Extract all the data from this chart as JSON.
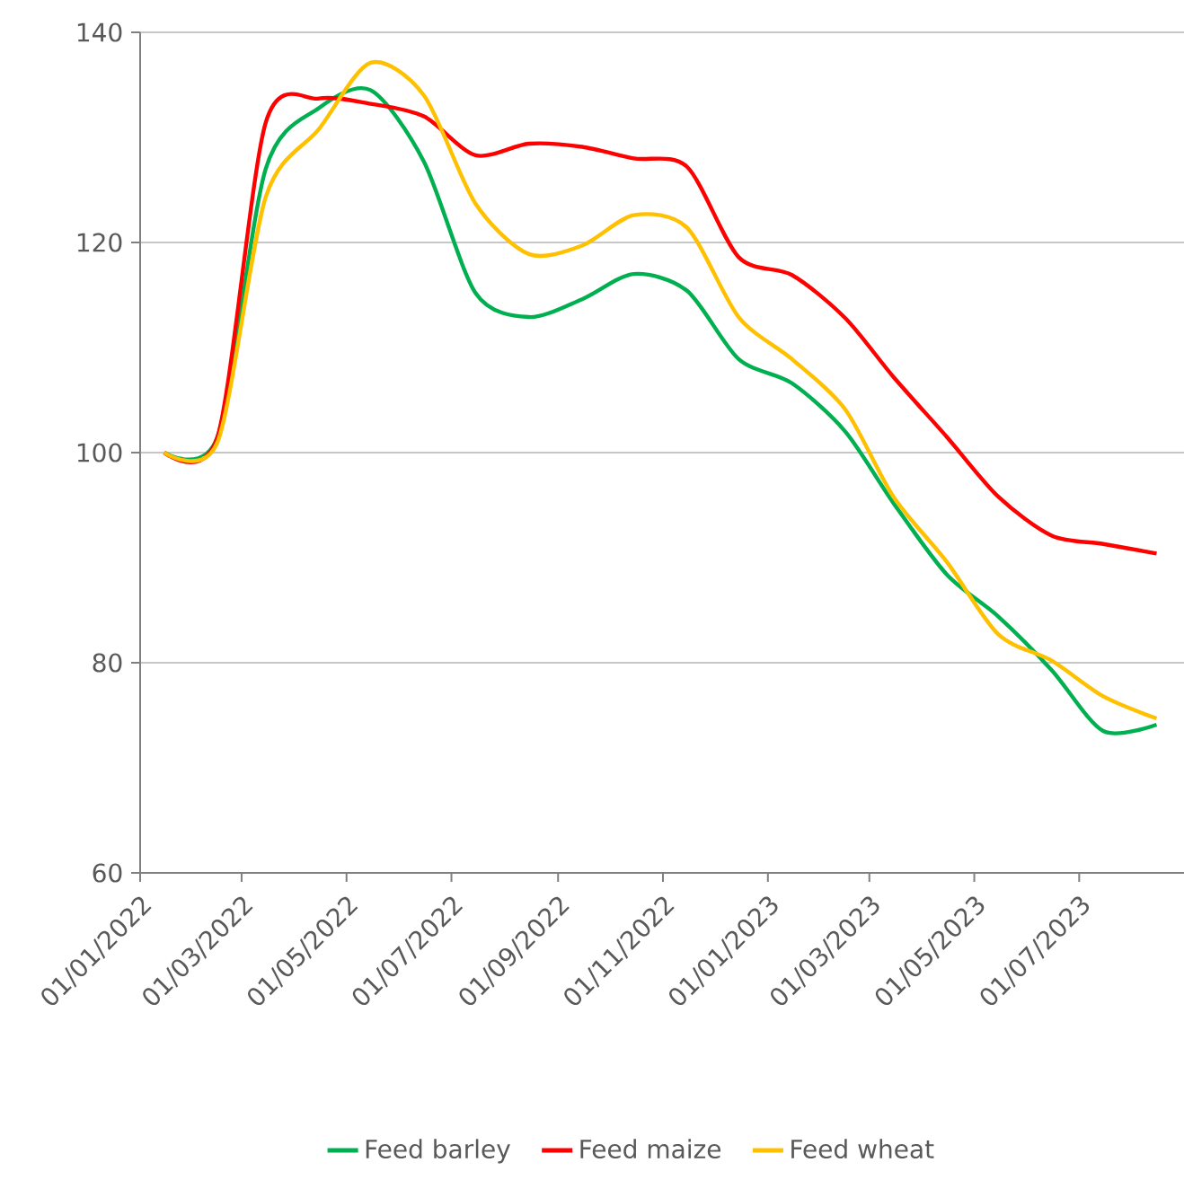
{
  "chart_data": {
    "type": "line",
    "x": [
      "2022-01-15",
      "2022-02-15",
      "2022-03-15",
      "2022-04-15",
      "2022-05-15",
      "2022-06-15",
      "2022-07-15",
      "2022-08-15",
      "2022-09-15",
      "2022-10-15",
      "2022-11-15",
      "2022-12-15",
      "2023-01-15",
      "2023-02-15",
      "2023-03-15",
      "2023-04-15",
      "2023-05-15",
      "2023-06-15",
      "2023-07-15",
      "2023-08-15"
    ],
    "series": [
      {
        "name": "Feed barley",
        "color": "#00b050",
        "values": [
          100,
          101.5,
          127,
          132.8,
          134.5,
          127.7,
          115.2,
          112.9,
          114.6,
          117.0,
          115.4,
          108.9,
          106.6,
          102,
          95.2,
          88.4,
          84.4,
          79.3,
          73.5,
          74.1
        ]
      },
      {
        "name": "Feed maize",
        "color": "#ff0000",
        "values": [
          100,
          101.5,
          131.4,
          133.7,
          133.2,
          132,
          128.3,
          129.4,
          129.1,
          128.0,
          127.2,
          118.6,
          116.9,
          112.8,
          107.2,
          101.5,
          95.8,
          92.1,
          91.3,
          90.4
        ]
      },
      {
        "name": "Feed wheat",
        "color": "#ffc000",
        "values": [
          100,
          101,
          124.3,
          130.8,
          137.1,
          134,
          123.7,
          118.9,
          119.7,
          122.6,
          121.4,
          112.9,
          108.9,
          104.1,
          95.8,
          89.6,
          82.7,
          80.2,
          76.8,
          74.7
        ]
      }
    ],
    "xlim": [
      "2022-01-01",
      "2023-09-01"
    ],
    "xticks": [
      {
        "value": "2022-01-01",
        "label": "01/01/2022"
      },
      {
        "value": "2022-03-01",
        "label": "01/03/2022"
      },
      {
        "value": "2022-05-01",
        "label": "01/05/2022"
      },
      {
        "value": "2022-07-01",
        "label": "01/07/2022"
      },
      {
        "value": "2022-09-01",
        "label": "01/09/2022"
      },
      {
        "value": "2022-11-01",
        "label": "01/11/2022"
      },
      {
        "value": "2023-01-01",
        "label": "01/01/2023"
      },
      {
        "value": "2023-03-01",
        "label": "01/03/2023"
      },
      {
        "value": "2023-05-01",
        "label": "01/05/2023"
      },
      {
        "value": "2023-07-01",
        "label": "01/07/2023"
      }
    ],
    "ylim": [
      60,
      140
    ],
    "yticks": [
      60,
      80,
      100,
      120,
      140
    ],
    "grid": "y",
    "legend": "bottom",
    "marker": "none",
    "line_style": "solid"
  }
}
